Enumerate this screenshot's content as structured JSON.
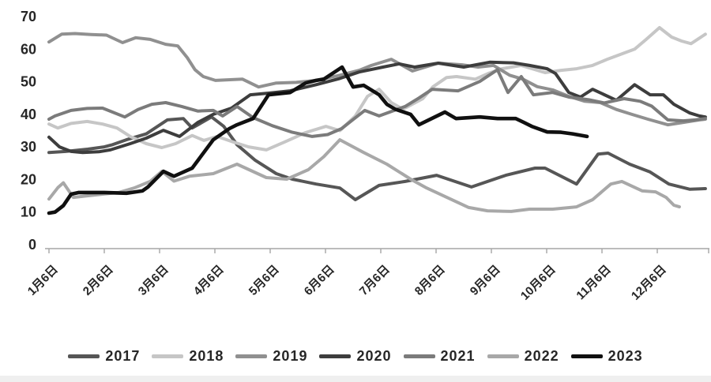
{
  "chart_data": {
    "type": "line",
    "title": "",
    "grid": false,
    "legend_position": "bottom",
    "x_axis": {
      "tick_labels": [
        "1月6日",
        "2月6日",
        "3月6日",
        "4月6日",
        "5月6日",
        "6月6日",
        "7月6日",
        "8月6日",
        "9月6日",
        "10月6日",
        "11月6日",
        "12月6日"
      ],
      "note": "weekly data points, monthly ticks"
    },
    "y_axis": {
      "min": 0,
      "max": 70,
      "step": 10,
      "tick_labels": [
        "0",
        "10",
        "20",
        "30",
        "40",
        "50",
        "60",
        "70"
      ]
    },
    "series": [
      {
        "name": "2017",
        "color": "#565656",
        "width": 4,
        "points": [
          [
            1,
            28.3
          ],
          [
            1.3,
            28.6
          ],
          [
            1.7,
            29.3
          ],
          [
            2,
            30
          ],
          [
            2.15,
            30.7
          ],
          [
            2.4,
            32.2
          ],
          [
            2.76,
            34
          ],
          [
            3.14,
            38.3
          ],
          [
            3.43,
            38.7
          ],
          [
            3.59,
            35.8
          ],
          [
            3.94,
            39.2
          ],
          [
            4.16,
            36.3
          ],
          [
            4.4,
            30.7
          ],
          [
            4.73,
            25.9
          ],
          [
            5.11,
            21.8
          ],
          [
            5.4,
            20.1
          ],
          [
            5.83,
            18.6
          ],
          [
            6.26,
            17.4
          ],
          [
            6.54,
            13.8
          ],
          [
            6.97,
            18.2
          ],
          [
            7.44,
            19.4
          ],
          [
            8.01,
            21.3
          ],
          [
            8.64,
            17.7
          ],
          [
            9.26,
            21.3
          ],
          [
            9.79,
            23.5
          ],
          [
            9.97,
            23.5
          ],
          [
            10.54,
            18.6
          ],
          [
            10.93,
            27.8
          ],
          [
            11.11,
            28.1
          ],
          [
            11.5,
            24.7
          ],
          [
            11.87,
            22.3
          ],
          [
            12.21,
            18.6
          ],
          [
            12.59,
            17
          ],
          [
            12.87,
            17.2
          ]
        ]
      },
      {
        "name": "2018",
        "color": "#c6c6c6",
        "width": 4,
        "points": [
          [
            1,
            37
          ],
          [
            1.16,
            35.8
          ],
          [
            1.4,
            37.2
          ],
          [
            1.69,
            37.8
          ],
          [
            1.97,
            37
          ],
          [
            2.23,
            35.8
          ],
          [
            2.47,
            33.2
          ],
          [
            2.76,
            31
          ],
          [
            3.04,
            29.8
          ],
          [
            3.29,
            31
          ],
          [
            3.59,
            33.5
          ],
          [
            3.8,
            32
          ],
          [
            4.04,
            33.2
          ],
          [
            4.33,
            31.5
          ],
          [
            4.61,
            30
          ],
          [
            4.93,
            29.1
          ],
          [
            5.26,
            31.5
          ],
          [
            5.64,
            34.4
          ],
          [
            6.01,
            36.3
          ],
          [
            6.26,
            35
          ],
          [
            6.54,
            39.5
          ],
          [
            6.76,
            45.5
          ],
          [
            6.97,
            47.7
          ],
          [
            7.19,
            43.6
          ],
          [
            7.4,
            41.6
          ],
          [
            7.76,
            44.8
          ],
          [
            7.94,
            48.4
          ],
          [
            8.19,
            51.3
          ],
          [
            8.37,
            51.6
          ],
          [
            8.71,
            50.8
          ],
          [
            8.94,
            52.5
          ],
          [
            9.19,
            54
          ],
          [
            9.54,
            55
          ],
          [
            9.97,
            52.8
          ],
          [
            10.26,
            53.5
          ],
          [
            10.54,
            54
          ],
          [
            10.83,
            55
          ],
          [
            11.11,
            57
          ],
          [
            11.59,
            60
          ],
          [
            11.8,
            63
          ],
          [
            12.04,
            66.6
          ],
          [
            12.26,
            63.7
          ],
          [
            12.44,
            62.5
          ],
          [
            12.61,
            61.7
          ],
          [
            12.87,
            64.6
          ]
        ]
      },
      {
        "name": "2019",
        "color": "#909090",
        "width": 4,
        "points": [
          [
            1,
            62.2
          ],
          [
            1.23,
            64.6
          ],
          [
            1.47,
            64.8
          ],
          [
            1.76,
            64.5
          ],
          [
            2.04,
            64.3
          ],
          [
            2.33,
            62
          ],
          [
            2.57,
            63.5
          ],
          [
            2.83,
            63
          ],
          [
            3.11,
            61.5
          ],
          [
            3.33,
            61
          ],
          [
            3.5,
            57.4
          ],
          [
            3.64,
            53.7
          ],
          [
            3.79,
            51.6
          ],
          [
            4.01,
            50.4
          ],
          [
            4.5,
            50.8
          ],
          [
            4.79,
            48.4
          ],
          [
            5.11,
            49.6
          ],
          [
            5.47,
            49.8
          ],
          [
            5.83,
            50.4
          ],
          [
            6.26,
            52
          ],
          [
            6.61,
            53.5
          ],
          [
            6.83,
            55
          ],
          [
            7.19,
            56.9
          ],
          [
            7.57,
            53.3
          ],
          [
            8.04,
            55.7
          ],
          [
            8.47,
            55.2
          ],
          [
            8.76,
            54.5
          ],
          [
            9.04,
            55
          ],
          [
            9.33,
            52
          ],
          [
            9.57,
            50.8
          ],
          [
            9.83,
            48.5
          ],
          [
            10.11,
            47.5
          ],
          [
            10.4,
            45.5
          ],
          [
            10.69,
            44
          ],
          [
            10.97,
            43.6
          ],
          [
            11.26,
            41.5
          ],
          [
            11.54,
            40
          ],
          [
            11.83,
            38.5
          ],
          [
            12.19,
            36.8
          ],
          [
            12.47,
            37.5
          ],
          [
            12.76,
            38.3
          ],
          [
            12.87,
            38.5
          ]
        ]
      },
      {
        "name": "2020",
        "color": "#3d3d3d",
        "width": 4,
        "points": [
          [
            1,
            33
          ],
          [
            1.19,
            30
          ],
          [
            1.4,
            28.6
          ],
          [
            1.61,
            28.3
          ],
          [
            1.9,
            28.5
          ],
          [
            2.11,
            29.1
          ],
          [
            2.47,
            31
          ],
          [
            2.76,
            32.7
          ],
          [
            3.07,
            35.1
          ],
          [
            3.36,
            33.2
          ],
          [
            3.69,
            37.5
          ],
          [
            3.97,
            40
          ],
          [
            4.3,
            41.9
          ],
          [
            4.64,
            46
          ],
          [
            4.97,
            46.5
          ],
          [
            5.36,
            47.2
          ],
          [
            5.83,
            49.1
          ],
          [
            6.26,
            51
          ],
          [
            6.61,
            53
          ],
          [
            7.04,
            54.5
          ],
          [
            7.33,
            55.5
          ],
          [
            7.61,
            54.5
          ],
          [
            8.04,
            55.7
          ],
          [
            8.5,
            54.5
          ],
          [
            8.97,
            56
          ],
          [
            9.4,
            55.8
          ],
          [
            9.69,
            55
          ],
          [
            10.01,
            54
          ],
          [
            10.16,
            52.5
          ],
          [
            10.4,
            46.7
          ],
          [
            10.61,
            45.3
          ],
          [
            10.83,
            47.7
          ],
          [
            11.26,
            44.3
          ],
          [
            11.59,
            49.1
          ],
          [
            11.87,
            46
          ],
          [
            12.11,
            46
          ],
          [
            12.3,
            43.1
          ],
          [
            12.59,
            40.4
          ],
          [
            12.76,
            39.5
          ],
          [
            12.87,
            39.2
          ]
        ]
      },
      {
        "name": "2021",
        "color": "#7b7b7b",
        "width": 4,
        "points": [
          [
            1,
            38.5
          ],
          [
            1.11,
            39.5
          ],
          [
            1.4,
            41.2
          ],
          [
            1.69,
            41.8
          ],
          [
            1.97,
            41.9
          ],
          [
            2.37,
            39.2
          ],
          [
            2.61,
            41.5
          ],
          [
            2.86,
            43.1
          ],
          [
            3.11,
            43.6
          ],
          [
            3.4,
            42.4
          ],
          [
            3.69,
            41
          ],
          [
            3.97,
            41.2
          ],
          [
            4.14,
            39.5
          ],
          [
            4.4,
            42.4
          ],
          [
            4.69,
            39
          ],
          [
            5.04,
            36.5
          ],
          [
            5.4,
            34.5
          ],
          [
            5.76,
            33.2
          ],
          [
            6.04,
            33.8
          ],
          [
            6.29,
            35.6
          ],
          [
            6.47,
            38
          ],
          [
            6.71,
            41.2
          ],
          [
            6.97,
            39.5
          ],
          [
            7.44,
            42.4
          ],
          [
            7.69,
            45
          ],
          [
            7.93,
            47.7
          ],
          [
            8.4,
            47.2
          ],
          [
            8.79,
            50.1
          ],
          [
            9.11,
            53.7
          ],
          [
            9.3,
            46.7
          ],
          [
            9.54,
            51.6
          ],
          [
            9.76,
            46
          ],
          [
            10.11,
            46.7
          ],
          [
            10.4,
            45.3
          ],
          [
            10.76,
            44.5
          ],
          [
            11.04,
            43.5
          ],
          [
            11.4,
            44.8
          ],
          [
            11.69,
            44
          ],
          [
            11.9,
            42.5
          ],
          [
            12.19,
            38.3
          ],
          [
            12.47,
            38
          ],
          [
            12.69,
            38.3
          ],
          [
            12.87,
            38.7
          ]
        ]
      },
      {
        "name": "2022",
        "color": "#a8a8a8",
        "width": 4,
        "points": [
          [
            1,
            14
          ],
          [
            1.16,
            17.5
          ],
          [
            1.26,
            19
          ],
          [
            1.44,
            14.5
          ],
          [
            1.69,
            15
          ],
          [
            1.97,
            15.5
          ],
          [
            2.26,
            16
          ],
          [
            2.54,
            17.4
          ],
          [
            2.83,
            19.4
          ],
          [
            3.04,
            22.5
          ],
          [
            3.26,
            19.5
          ],
          [
            3.54,
            21
          ],
          [
            3.97,
            21.8
          ],
          [
            4.4,
            24.7
          ],
          [
            4.93,
            20.6
          ],
          [
            5.3,
            20.1
          ],
          [
            5.69,
            23
          ],
          [
            5.97,
            27
          ],
          [
            6.26,
            32.2
          ],
          [
            6.69,
            28.3
          ],
          [
            7.11,
            24.7
          ],
          [
            7.54,
            20.1
          ],
          [
            7.83,
            17.4
          ],
          [
            8.26,
            14
          ],
          [
            8.59,
            11.4
          ],
          [
            8.93,
            10.4
          ],
          [
            9.36,
            10.2
          ],
          [
            9.69,
            10.9
          ],
          [
            10.11,
            10.9
          ],
          [
            10.54,
            11.6
          ],
          [
            10.83,
            13.8
          ],
          [
            11.16,
            18.6
          ],
          [
            11.36,
            19.4
          ],
          [
            11.73,
            16.5
          ],
          [
            11.97,
            16.2
          ],
          [
            12.16,
            14.5
          ],
          [
            12.3,
            12.1
          ],
          [
            12.4,
            11.6
          ]
        ]
      },
      {
        "name": "2023",
        "color": "#101010",
        "width": 4.6,
        "points": [
          [
            1,
            9.7
          ],
          [
            1.11,
            10
          ],
          [
            1.26,
            12
          ],
          [
            1.4,
            15.5
          ],
          [
            1.54,
            16
          ],
          [
            2,
            16
          ],
          [
            2.4,
            15.8
          ],
          [
            2.69,
            16.5
          ],
          [
            2.79,
            17.7
          ],
          [
            3.07,
            22.5
          ],
          [
            3.26,
            21
          ],
          [
            3.59,
            23.5
          ],
          [
            3.97,
            32.2
          ],
          [
            4.26,
            35.6
          ],
          [
            4.4,
            36.8
          ],
          [
            4.69,
            38.7
          ],
          [
            4.97,
            46
          ],
          [
            5.36,
            46.7
          ],
          [
            5.64,
            49.6
          ],
          [
            5.83,
            50.4
          ],
          [
            5.97,
            50.8
          ],
          [
            6.3,
            54.5
          ],
          [
            6.5,
            48.4
          ],
          [
            6.69,
            48.9
          ],
          [
            6.97,
            46
          ],
          [
            7.11,
            43.1
          ],
          [
            7.26,
            41.6
          ],
          [
            7.54,
            40
          ],
          [
            7.69,
            36.8
          ],
          [
            8.16,
            40.7
          ],
          [
            8.36,
            38.7
          ],
          [
            8.79,
            39.2
          ],
          [
            9.11,
            38.7
          ],
          [
            9.44,
            38.7
          ],
          [
            9.59,
            37.5
          ],
          [
            9.73,
            36.3
          ],
          [
            10.01,
            34.6
          ],
          [
            10.26,
            34.5
          ],
          [
            10.47,
            34
          ],
          [
            10.73,
            33.2
          ]
        ]
      }
    ]
  }
}
